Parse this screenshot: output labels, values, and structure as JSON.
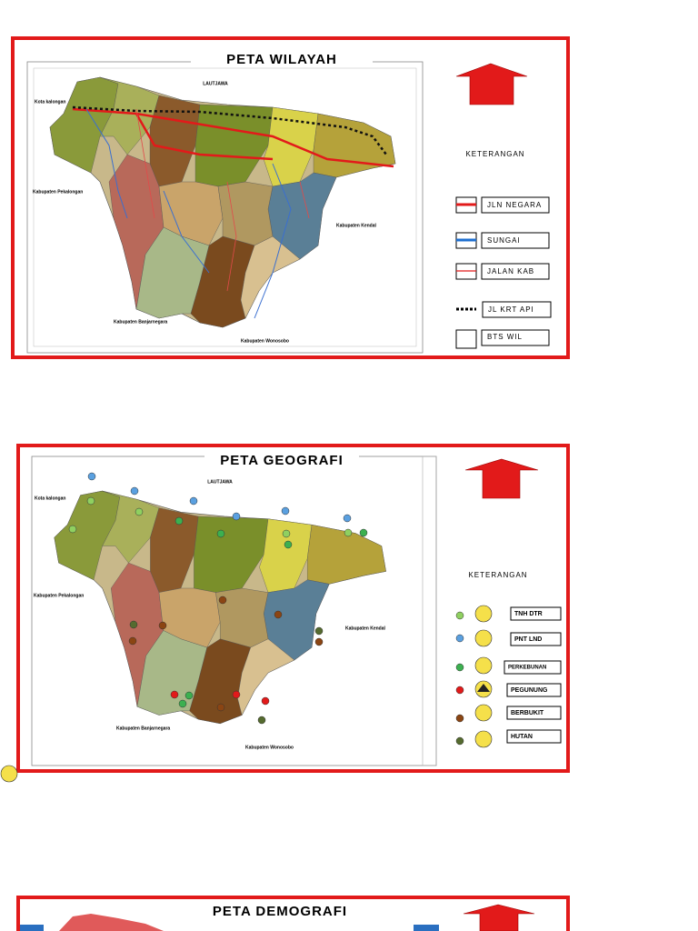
{
  "maps": [
    {
      "title": "PETA   WILAYAH",
      "sea": "LAUTJAWA",
      "places": [
        "Kota kalongan",
        "Kabupaten Pekalongan",
        "Kabupaten Kendal",
        "Kabupaten Banjarnegara",
        "Kabupaten Wonosobo"
      ],
      "legend_title": "KETERANGAN",
      "legend": [
        "JLN NEGARA",
        "SUNGAI",
        "JALAN KAB",
        "JL KRT API",
        "BTS WIL"
      ]
    },
    {
      "title": "PETA  GEOGRAFI",
      "sea": "LAUTJAWA",
      "places": [
        "Kota kalongan",
        "Kabupaten Pekalongan",
        "Kabupaten Kendal",
        "Kabupaten Banjarnegara",
        "Kabupaten Wonosobo"
      ],
      "legend_title": "KETERANGAN",
      "legend": [
        "TNH DTR",
        "PNT LND",
        "PERKEBUNAN",
        "PEGUNUNG",
        "BERBUKIT",
        "HUTAN"
      ]
    },
    {
      "title": "PETA  DEMOGRAFI"
    }
  ]
}
